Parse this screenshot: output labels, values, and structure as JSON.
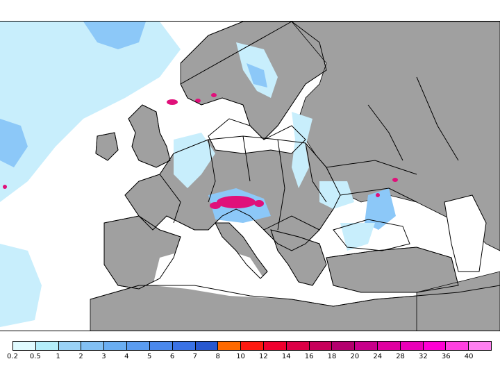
{
  "map": {
    "colors": {
      "sea": "#ffffff",
      "land": "#a0a0a0",
      "border": "#000000",
      "precip_light": "#c8eefc",
      "precip_medium": "#8cc8f8",
      "precip_heavy": "#4a90f0",
      "precip_extreme": "#e0107a"
    }
  },
  "legend": {
    "colors": [
      "#e0fbff",
      "#b4eefa",
      "#9ad2f6",
      "#82c0f4",
      "#6aaef2",
      "#5a9cf0",
      "#4a88ec",
      "#3a72e6",
      "#2858d0",
      "#ff6a00",
      "#ff1a10",
      "#f0002e",
      "#dc0046",
      "#c8005a",
      "#b4006e",
      "#c8008a",
      "#e000a0",
      "#ea00b8",
      "#ff00d4",
      "#ff40e0",
      "#ff80f0"
    ],
    "labels": [
      "0.2",
      "0.5",
      "1",
      "2",
      "3",
      "4",
      "5",
      "6",
      "7",
      "8",
      "10",
      "12",
      "14",
      "16",
      "18",
      "20",
      "24",
      "28",
      "32",
      "36",
      "40"
    ]
  }
}
